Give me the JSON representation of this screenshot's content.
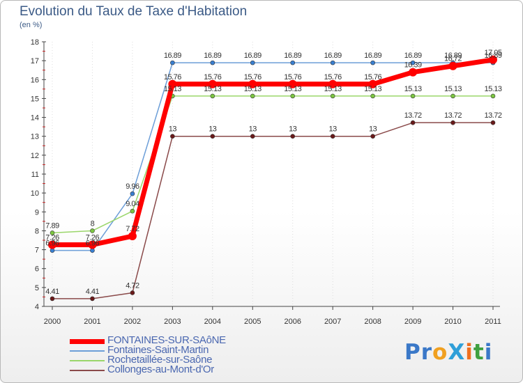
{
  "title": "Evolution du Taux de Taxe d'Habitation",
  "subtitle": "(en %)",
  "brand": {
    "text": "ProXiti",
    "letters": [
      {
        "ch": "P",
        "color": "#3a78c8"
      },
      {
        "ch": "r",
        "color": "#3a78c8"
      },
      {
        "ch": "o",
        "color": "#f0a020"
      },
      {
        "ch": "X",
        "color": "#2f9fd8"
      },
      {
        "ch": "i",
        "color": "#f07020"
      },
      {
        "ch": "t",
        "color": "#3fa040"
      },
      {
        "ch": "i",
        "color": "#3a78c8"
      }
    ]
  },
  "chart_data": {
    "type": "line",
    "title": "Evolution du Taux de Taxe d'Habitation",
    "ylabel": "(en %)",
    "xlabel": "",
    "ylim": [
      4,
      18
    ],
    "yticks": [
      4,
      5,
      6,
      7,
      8,
      9,
      10,
      11,
      12,
      13,
      14,
      15,
      16,
      17,
      18
    ],
    "categories": [
      "2000",
      "2001",
      "2002",
      "2003",
      "2004",
      "2005",
      "2006",
      "2007",
      "2008",
      "2009",
      "2010",
      "2011"
    ],
    "series": [
      {
        "name": "Fontaines-Saint-Martin",
        "color": "#6c9ed8",
        "marker": "#3a7fd0",
        "width": 1.5,
        "values": [
          6.96,
          6.96,
          9.96,
          16.89,
          16.89,
          16.89,
          16.89,
          16.89,
          16.89,
          16.89,
          16.89,
          16.89
        ],
        "labels": [
          "6.96",
          "6.96",
          "9.96",
          "16.89",
          "16.89",
          "16.89",
          "16.89",
          "16.89",
          "16.89",
          "16.89",
          "16.89",
          "16.89"
        ]
      },
      {
        "name": "Rochetaillée-sur-Saône",
        "color": "#9ad66a",
        "marker": "#7cc642",
        "width": 1.5,
        "values": [
          7.89,
          8.0,
          9.04,
          15.13,
          15.13,
          15.13,
          15.13,
          15.13,
          15.13,
          15.13,
          15.13,
          15.13
        ],
        "labels": [
          "7.89",
          "8",
          "9.04",
          "15.13",
          "15.13",
          "15.13",
          "15.13",
          "15.13",
          "15.13",
          "15.13",
          "15.13",
          "15.13"
        ]
      },
      {
        "name": "Collonges-au-Mont-d'Or",
        "color": "#8a4a4a",
        "marker": "#6a1a1a",
        "width": 1.5,
        "values": [
          4.41,
          4.41,
          4.72,
          13,
          13,
          13,
          13,
          13,
          13,
          13.72,
          13.72,
          13.72
        ],
        "labels": [
          "4.41",
          "4.41",
          "4.72",
          "13",
          "13",
          "13",
          "13",
          "13",
          "13",
          "13.72",
          "13.72",
          "13.72"
        ]
      },
      {
        "name": "FONTAINES-SUR-SAôNE",
        "color": "#ff0000",
        "marker": "#ff0000",
        "width": 7,
        "values": [
          7.26,
          7.26,
          7.72,
          15.76,
          15.76,
          15.76,
          15.76,
          15.76,
          15.76,
          16.39,
          16.72,
          17.05
        ],
        "labels": [
          "7.26",
          "7.26",
          "7.72",
          "15.76",
          "15.76",
          "15.76",
          "15.76",
          "15.76",
          "15.76",
          "16.39",
          "16.72",
          "17.05"
        ]
      }
    ]
  },
  "legend": {
    "items": [
      {
        "label": "FONTAINES-SUR-SAôNE",
        "color": "#ff0000",
        "width": 7
      },
      {
        "label": "Fontaines-Saint-Martin",
        "color": "#6c9ed8",
        "width": 2
      },
      {
        "label": "Rochetaillée-sur-Saône",
        "color": "#9ad66a",
        "width": 2
      },
      {
        "label": "Collonges-au-Mont-d'Or",
        "color": "#8a4a4a",
        "width": 2
      }
    ]
  }
}
